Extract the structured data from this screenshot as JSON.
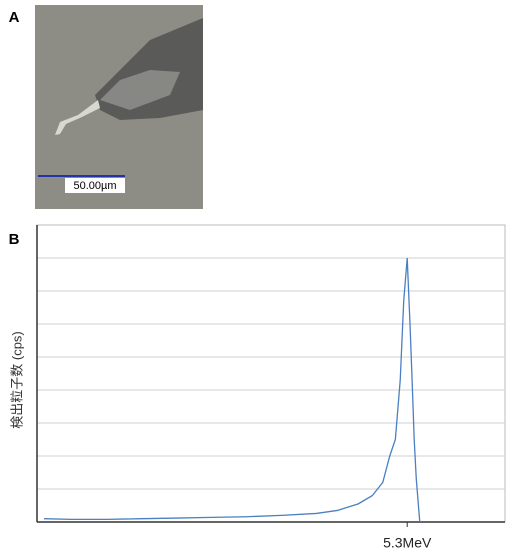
{
  "panel_a": {
    "label": "A",
    "scale_bar": "50.00µm"
  },
  "panel_b": {
    "label": "B"
  },
  "chart_data": {
    "type": "line",
    "ylabel": "検出粒子数 (cps)",
    "xlim": [
      0,
      6.7
    ],
    "xticks": [
      {
        "value": 5.3,
        "label": "5.3MeV"
      }
    ],
    "ylim": [
      0,
      9
    ],
    "yticks": [
      1,
      2,
      3,
      4,
      5,
      6,
      7,
      8
    ],
    "grid": true,
    "series": [
      {
        "color": "#4a7fc1",
        "x": [
          0.1,
          0.5,
          1,
          1.5,
          2,
          2.5,
          3,
          3.5,
          4,
          4.3,
          4.6,
          4.8,
          4.95,
          5.05,
          5.13,
          5.2,
          5.25,
          5.3,
          5.34,
          5.37,
          5.4,
          5.43,
          5.48
        ],
        "values": [
          0.1,
          0.08,
          0.08,
          0.1,
          0.12,
          0.14,
          0.16,
          0.2,
          0.26,
          0.35,
          0.55,
          0.8,
          1.2,
          2.0,
          2.5,
          4.3,
          6.7,
          8,
          6.0,
          4.3,
          2.5,
          1.3,
          0
        ]
      }
    ]
  }
}
